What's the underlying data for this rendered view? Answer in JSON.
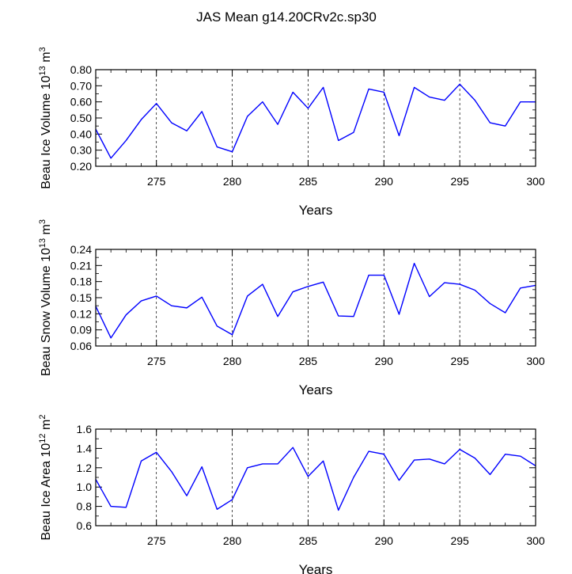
{
  "title": "JAS Mean g14.20CRv2c.sp30",
  "line_color": "#0000ff",
  "chart_data": [
    {
      "type": "line",
      "ylabel_main": "Beau Ice Volume 10",
      "ylabel_exp": "13",
      "ylabel_unit": " m",
      "ylabel_unit_exp": "3",
      "xlabel": "Years",
      "xlim": [
        271,
        300
      ],
      "ylim": [
        0.2,
        0.8
      ],
      "yticks": [
        0.2,
        0.3,
        0.4,
        0.5,
        0.6,
        0.7,
        0.8
      ],
      "ytick_labels": [
        "0.20",
        "0.30",
        "0.40",
        "0.50",
        "0.60",
        "0.70",
        "0.80"
      ],
      "xticks": [
        275,
        280,
        285,
        290,
        295,
        300
      ],
      "xtick_labels": [
        "275",
        "280",
        "285",
        "290",
        "295",
        "300"
      ],
      "gridlines_x": [
        275,
        280,
        285,
        290,
        295
      ],
      "x": [
        271,
        272,
        273,
        274,
        275,
        276,
        277,
        278,
        279,
        280,
        281,
        282,
        283,
        284,
        285,
        286,
        287,
        288,
        289,
        290,
        291,
        292,
        293,
        294,
        295,
        296,
        297,
        298,
        299,
        300
      ],
      "values": [
        0.43,
        0.25,
        0.36,
        0.49,
        0.59,
        0.47,
        0.42,
        0.54,
        0.32,
        0.29,
        0.51,
        0.6,
        0.46,
        0.66,
        0.56,
        0.69,
        0.36,
        0.41,
        0.68,
        0.66,
        0.39,
        0.69,
        0.63,
        0.61,
        0.71,
        0.61,
        0.47,
        0.45,
        0.6,
        0.6
      ]
    },
    {
      "type": "line",
      "ylabel_main": "Beau Snow Volume 10",
      "ylabel_exp": "13",
      "ylabel_unit": " m",
      "ylabel_unit_exp": "3",
      "xlabel": "Years",
      "xlim": [
        271,
        300
      ],
      "ylim": [
        0.06,
        0.24
      ],
      "yticks": [
        0.06,
        0.09,
        0.12,
        0.15,
        0.18,
        0.21,
        0.24
      ],
      "ytick_labels": [
        "0.06",
        "0.09",
        "0.12",
        "0.15",
        "0.18",
        "0.21",
        "0.24"
      ],
      "xticks": [
        275,
        280,
        285,
        290,
        295,
        300
      ],
      "xtick_labels": [
        "275",
        "280",
        "285",
        "290",
        "295",
        "300"
      ],
      "gridlines_x": [
        275,
        280,
        285,
        290,
        295
      ],
      "x": [
        271,
        272,
        273,
        274,
        275,
        276,
        277,
        278,
        279,
        280,
        281,
        282,
        283,
        284,
        285,
        286,
        287,
        288,
        289,
        290,
        291,
        292,
        293,
        294,
        295,
        296,
        297,
        298,
        299,
        300
      ],
      "values": [
        0.134,
        0.075,
        0.118,
        0.144,
        0.153,
        0.135,
        0.131,
        0.151,
        0.097,
        0.081,
        0.153,
        0.175,
        0.115,
        0.161,
        0.171,
        0.179,
        0.116,
        0.115,
        0.192,
        0.192,
        0.119,
        0.214,
        0.152,
        0.178,
        0.175,
        0.164,
        0.139,
        0.122,
        0.168,
        0.173
      ]
    },
    {
      "type": "line",
      "ylabel_main": "Beau Ice Area 10",
      "ylabel_exp": "12",
      "ylabel_unit": " m",
      "ylabel_unit_exp": "2",
      "xlabel": "Years",
      "xlim": [
        271,
        300
      ],
      "ylim": [
        0.6,
        1.6
      ],
      "yticks": [
        0.6,
        0.8,
        1.0,
        1.2,
        1.4,
        1.6
      ],
      "ytick_labels": [
        "0.6",
        "0.8",
        "1.0",
        "1.2",
        "1.4",
        "1.6"
      ],
      "xticks": [
        275,
        280,
        285,
        290,
        295,
        300
      ],
      "xtick_labels": [
        "275",
        "280",
        "285",
        "290",
        "295",
        "300"
      ],
      "gridlines_x": [
        275,
        280,
        285,
        290,
        295
      ],
      "x": [
        271,
        272,
        273,
        274,
        275,
        276,
        277,
        278,
        279,
        280,
        281,
        282,
        283,
        284,
        285,
        286,
        287,
        288,
        289,
        290,
        291,
        292,
        293,
        294,
        295,
        296,
        297,
        298,
        299,
        300
      ],
      "values": [
        1.08,
        0.8,
        0.79,
        1.27,
        1.36,
        1.16,
        0.91,
        1.21,
        0.77,
        0.87,
        1.2,
        1.24,
        1.24,
        1.41,
        1.11,
        1.27,
        0.76,
        1.1,
        1.37,
        1.34,
        1.07,
        1.28,
        1.29,
        1.24,
        1.39,
        1.3,
        1.13,
        1.34,
        1.32,
        1.22
      ]
    }
  ]
}
